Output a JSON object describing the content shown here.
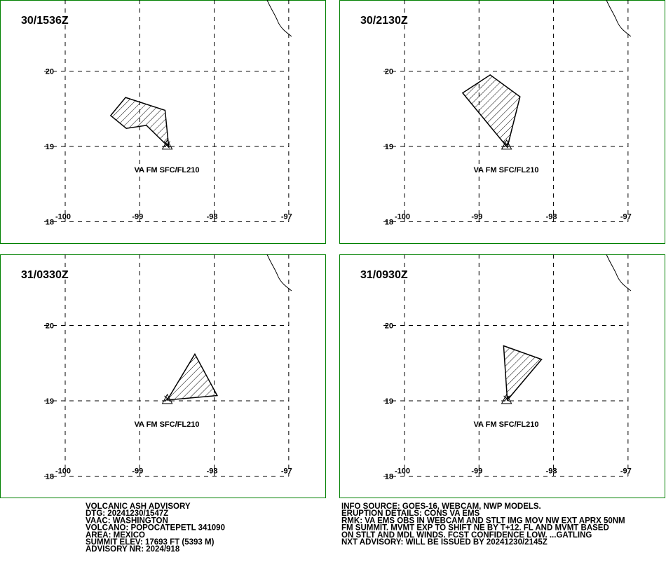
{
  "chart_data": [
    {
      "type": "map",
      "title": "30/1536Z",
      "annotation": "VA FM SFC/FL210",
      "xlim": [
        -100.875,
        -96.5
      ],
      "ylim": [
        17.707,
        20.944
      ],
      "xticks": [
        -100,
        -99,
        -98,
        -97
      ],
      "yticks": [
        18,
        19,
        20
      ],
      "polygon": {
        "x": [
          -99.19,
          -98.66,
          -98.61,
          -98.91,
          -99.18,
          -99.39
        ],
        "y": [
          19.65,
          19.48,
          18.99,
          19.28,
          19.24,
          19.41
        ]
      },
      "summit": {
        "x": -98.63,
        "y": 19.02
      }
    },
    {
      "type": "map",
      "title": "30/2130Z",
      "annotation": "VA FM SFC/FL210",
      "xlim": [
        -100.875,
        -96.5
      ],
      "ylim": [
        17.707,
        20.944
      ],
      "xticks": [
        -100,
        -99,
        -98,
        -97
      ],
      "yticks": [
        18,
        19,
        20
      ],
      "polygon": {
        "x": [
          -99.22,
          -98.85,
          -98.45,
          -98.62
        ],
        "y": [
          19.71,
          19.95,
          19.66,
          18.99
        ]
      },
      "summit": {
        "x": -98.63,
        "y": 19.02
      }
    },
    {
      "type": "map",
      "title": "31/0330Z",
      "annotation": "VA FM SFC/FL210",
      "xlim": [
        -100.875,
        -96.5
      ],
      "ylim": [
        17.707,
        20.944
      ],
      "xticks": [
        -100,
        -99,
        -98,
        -97
      ],
      "yticks": [
        18,
        19,
        20
      ],
      "polygon": {
        "x": [
          -98.26,
          -97.96,
          -98.63
        ],
        "y": [
          19.62,
          19.07,
          19.01
        ]
      },
      "summit": {
        "x": -98.63,
        "y": 19.02
      }
    },
    {
      "type": "map",
      "title": "31/0930Z",
      "annotation": "VA FM SFC/FL210",
      "xlim": [
        -100.875,
        -96.5
      ],
      "ylim": [
        17.707,
        20.944
      ],
      "xticks": [
        -100,
        -99,
        -98,
        -97
      ],
      "yticks": [
        18,
        19,
        20
      ],
      "polygon": {
        "x": [
          -98.67,
          -98.16,
          -98.62
        ],
        "y": [
          19.73,
          19.55,
          19.01
        ]
      },
      "summit": {
        "x": -98.63,
        "y": 19.02
      }
    }
  ],
  "advisory": {
    "left": [
      "VOLCANIC ASH ADVISORY",
      "DTG: 20241230/1547Z",
      "VAAC: WASHINGTON",
      "VOLCANO: POPOCATEPETL 341090",
      "AREA: MEXICO",
      "SUMMIT ELEV: 17693 FT (5393 M)",
      "ADVISORY NR: 2024/918"
    ],
    "right": [
      "INFO SOURCE: GOES-16, WEBCAM, NWP MODELS.",
      "ERUPTION DETAILS: CONS VA EMS",
      "RMK: VA EMS OBS IN WEBCAM AND STLT IMG MOV NW EXT APRX 50NM",
      "FM SUMMIT. MVMT EXP TO SHIFT NE BY T+12. FL AND MVMT BASED",
      "ON STLT AND MDL WINDS. FCST CONFIDENCE LOW. ...GATLING",
      "NXT ADVISORY: WILL BE ISSUED BY 20241230/2145Z"
    ]
  }
}
